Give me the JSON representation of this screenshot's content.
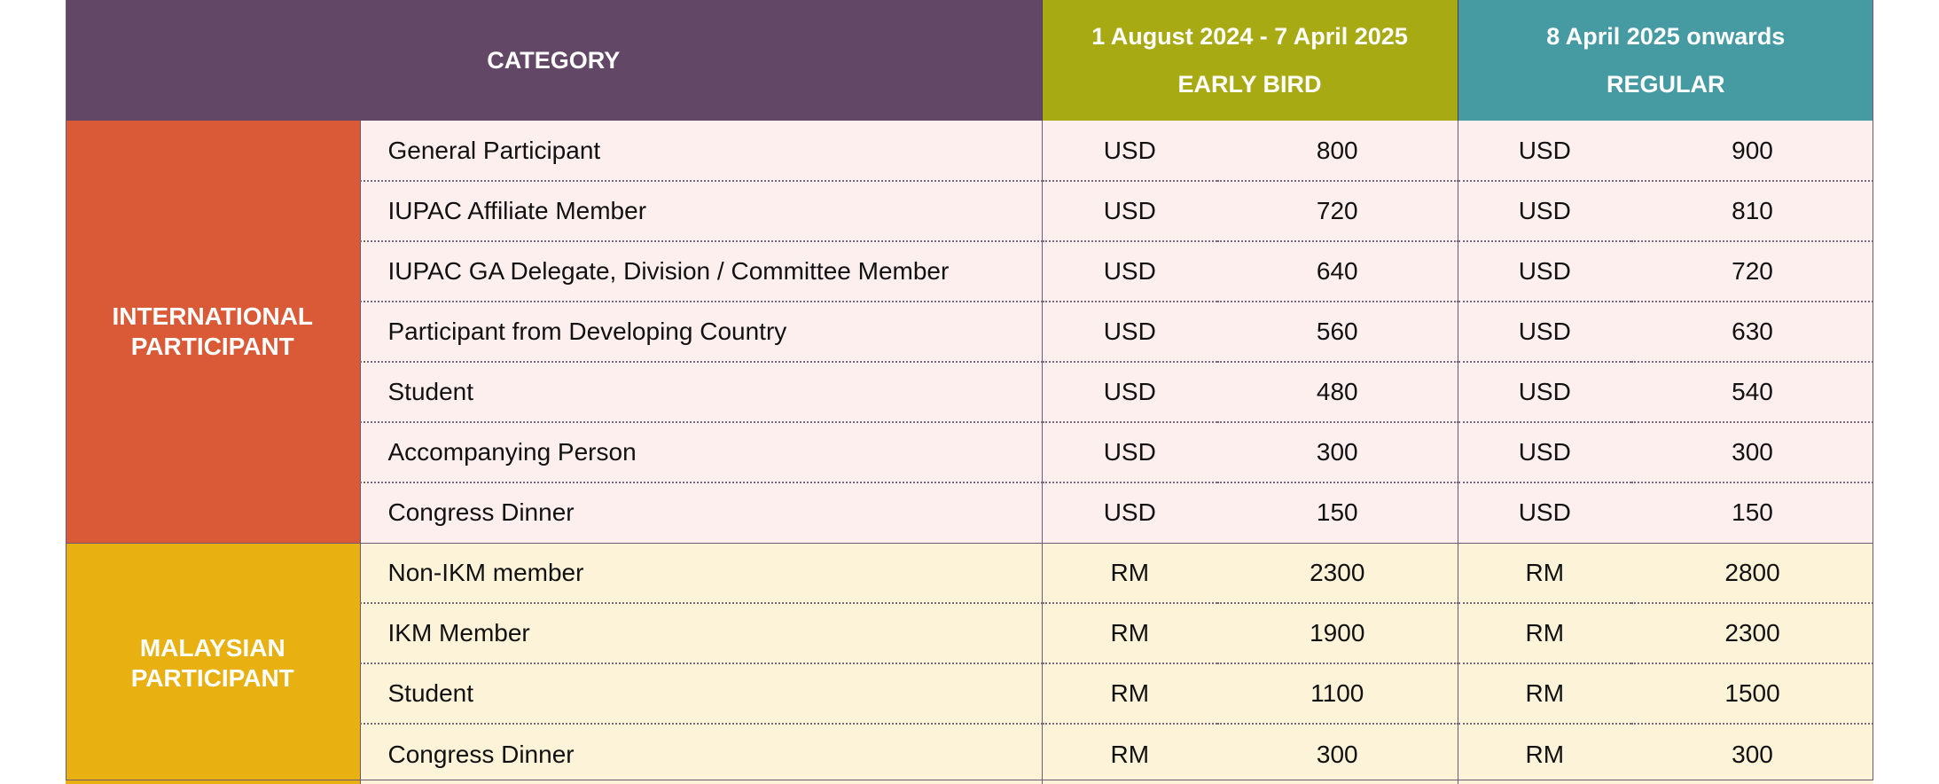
{
  "header": {
    "category": "CATEGORY",
    "early_bird_dates": "1 August 2024 - 7 April 2025",
    "early_bird_label": "EARLY BIRD",
    "regular_dates": "8 April 2025 onwards",
    "regular_label": "REGULAR"
  },
  "colors": {
    "header_category": "#634766",
    "header_early_bird": "#a7aa13",
    "header_regular": "#469ba3",
    "international_group": "#da5a37",
    "malaysian_group": "#e8b111",
    "international_rows": "#fdefee",
    "malaysian_rows": "#fdf3d8"
  },
  "groups": {
    "international": {
      "label_line1": "INTERNATIONAL",
      "label_line2": "PARTICIPANT",
      "rows": [
        {
          "category": "General Participant",
          "early_currency": "USD",
          "early_amount": "800",
          "regular_currency": "USD",
          "regular_amount": "900"
        },
        {
          "category": "IUPAC Affiliate Member",
          "early_currency": "USD",
          "early_amount": "720",
          "regular_currency": "USD",
          "regular_amount": "810"
        },
        {
          "category": "IUPAC GA Delegate, Division / Committee Member",
          "early_currency": "USD",
          "early_amount": "640",
          "regular_currency": "USD",
          "regular_amount": "720"
        },
        {
          "category": "Participant from Developing Country",
          "early_currency": "USD",
          "early_amount": "560",
          "regular_currency": "USD",
          "regular_amount": "630"
        },
        {
          "category": "Student",
          "early_currency": "USD",
          "early_amount": "480",
          "regular_currency": "USD",
          "regular_amount": "540"
        },
        {
          "category": "Accompanying Person",
          "early_currency": "USD",
          "early_amount": "300",
          "regular_currency": "USD",
          "regular_amount": "300"
        },
        {
          "category": "Congress Dinner",
          "early_currency": "USD",
          "early_amount": "150",
          "regular_currency": "USD",
          "regular_amount": "150"
        }
      ]
    },
    "malaysian": {
      "label_line1": "MALAYSIAN",
      "label_line2": "PARTICIPANT",
      "rows": [
        {
          "category": "Non-IKM member",
          "early_currency": "RM",
          "early_amount": "2300",
          "regular_currency": "RM",
          "regular_amount": "2800"
        },
        {
          "category": "IKM Member",
          "early_currency": "RM",
          "early_amount": "1900",
          "regular_currency": "RM",
          "regular_amount": "2300"
        },
        {
          "category": "Student",
          "early_currency": "RM",
          "early_amount": "1100",
          "regular_currency": "RM",
          "regular_amount": "1500"
        },
        {
          "category": "Congress Dinner",
          "early_currency": "RM",
          "early_amount": "300",
          "regular_currency": "RM",
          "regular_amount": "300"
        }
      ]
    }
  }
}
